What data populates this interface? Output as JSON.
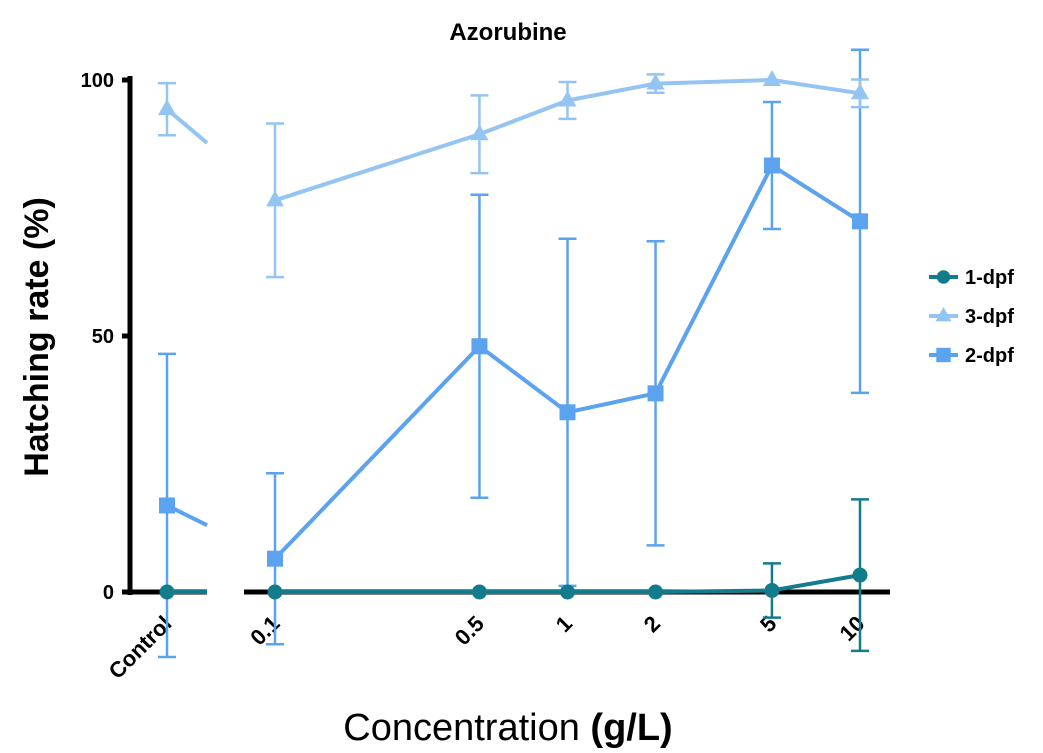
{
  "chart_data": {
    "type": "line",
    "title": "Azorubine",
    "xlabel": "Concentration",
    "xlabel_unit": "(g/L)",
    "ylabel": "Hatching rate  (%)",
    "ylim": [
      0,
      100
    ],
    "yticks": [
      "0",
      "50",
      "100"
    ],
    "x_scale": "log with broken axis after Control",
    "categories": [
      "Control",
      "0.1",
      "0.5",
      "1",
      "2",
      "5",
      "10"
    ],
    "grid": false,
    "legend_position": "right",
    "series": [
      {
        "name": "1-dpf",
        "marker": "circle",
        "color": "#127c8c",
        "values": [
          0,
          0,
          0,
          0,
          0,
          0.3,
          3.3
        ],
        "errors": [
          0,
          0,
          0,
          0,
          0,
          5.3,
          14.8
        ]
      },
      {
        "name": "3-dpf",
        "marker": "triangle",
        "color": "#94c4f2",
        "values": [
          94.3,
          76.5,
          89.4,
          96,
          99.3,
          100,
          97.4
        ],
        "errors": [
          5.1,
          15,
          7.6,
          3.6,
          1.8,
          0,
          2.7
        ]
      },
      {
        "name": "2-dpf",
        "marker": "square",
        "color": "#5ba3ee",
        "values": [
          16.9,
          6.5,
          48,
          35.1,
          38.8,
          83.3,
          72.4
        ],
        "errors": [
          29.6,
          16.7,
          29.6,
          33.9,
          29.7,
          12.4,
          33.5
        ]
      }
    ]
  }
}
